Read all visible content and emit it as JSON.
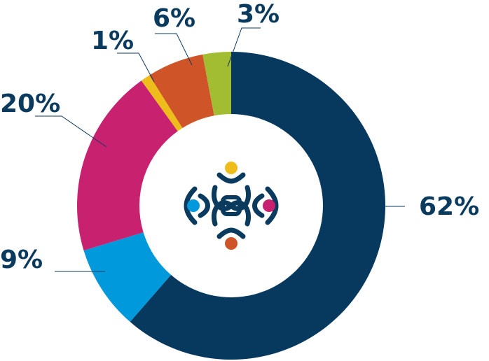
{
  "chart_data": {
    "type": "pie",
    "style": "donut",
    "slices": [
      {
        "label": "62%",
        "value": 62,
        "color": "#07385e"
      },
      {
        "label": "9%",
        "value": 9,
        "color": "#0099db"
      },
      {
        "label": "20%",
        "value": 20,
        "color": "#c8216f"
      },
      {
        "label": "1%",
        "value": 1,
        "color": "#eebd1b"
      },
      {
        "label": "6%",
        "value": 6,
        "color": "#cf5427"
      },
      {
        "label": "3%",
        "value": 3,
        "color": "#a3bd33"
      }
    ],
    "center_icon": "dna-logo-icon"
  }
}
